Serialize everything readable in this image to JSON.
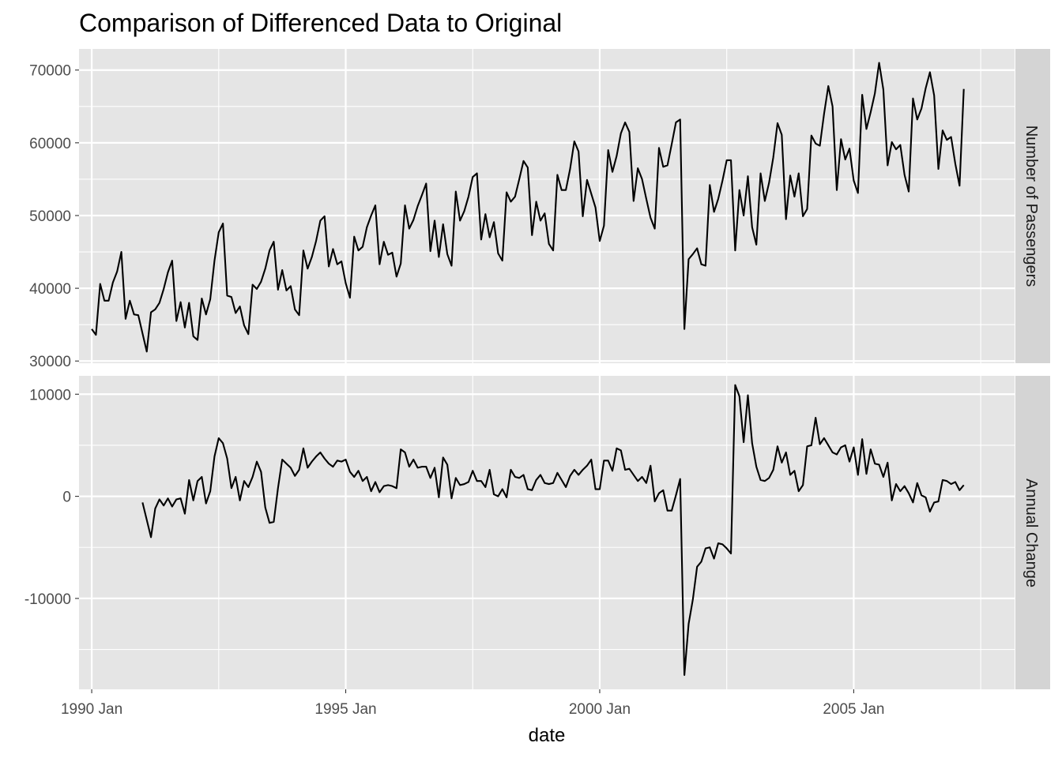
{
  "chart_data": {
    "type": "line",
    "title": "Comparison of Differenced Data to Original",
    "xlabel": "date",
    "x_ticks": [
      "1990 Jan",
      "1995 Jan",
      "2000 Jan",
      "2005 Jan"
    ],
    "x_range": [
      "1989-10",
      "2008-03"
    ],
    "panels": [
      {
        "strip_label": "Number of Passengers",
        "ylim": [
          29700,
          72900
        ],
        "y_ticks": [
          30000,
          40000,
          50000,
          60000,
          70000
        ],
        "series": [
          {
            "start": "1990-01",
            "values": [
              34400,
              33600,
              40600,
              38300,
              38300,
              40800,
              42300,
              45000,
              35800,
              38300,
              36400,
              36300,
              33800,
              31300,
              36700,
              37100,
              38000,
              39900,
              42200,
              43800,
              35500,
              38100,
              34600,
              38000,
              33400,
              32900,
              38600,
              36400,
              38500,
              43800,
              47700,
              48900,
              39000,
              38800,
              36600,
              37500,
              34900,
              33700,
              40500,
              39900,
              40900,
              42700,
              45200,
              46400,
              39800,
              42500,
              39700,
              40300,
              37100,
              36300,
              45200,
              42700,
              44300,
              46500,
              49300,
              49900,
              43000,
              45400,
              43300,
              43700,
              40700,
              38700,
              47100,
              45200,
              45700,
              48400,
              50000,
              51400,
              43300,
              46400,
              44600,
              44900,
              41600,
              43400,
              51400,
              48200,
              49400,
              51300,
              52800,
              54400,
              45100,
              49300,
              44300,
              48800,
              44700,
              43100,
              53300,
              49300,
              50600,
              52600,
              55300,
              55800,
              46700,
              50200,
              47000,
              49100,
              44800,
              43800,
              53200,
              51900,
              52600,
              55000,
              57500,
              56600,
              47300,
              51900,
              49300,
              50300,
              46100,
              45200,
              55600,
              53500,
              53500,
              56400,
              60200,
              58800,
              49900,
              54900,
              53000,
              51100,
              46500,
              48600,
              59000,
              56000,
              58200,
              61300,
              62800,
              61500,
              52000,
              56500,
              55000,
              52300,
              49700,
              48200,
              59300,
              56700,
              56900,
              59800,
              62800,
              63200,
              34400,
              44000,
              44700,
              45500,
              43300,
              43100,
              54200,
              50500,
              52300,
              54800,
              57600,
              57600,
              45200,
              53500,
              50000,
              55400,
              48400,
              46000,
              55800,
              52000,
              54500,
              58000,
              62700,
              61100,
              49500,
              55500,
              52600,
              55800,
              49900,
              50900,
              61000,
              59900,
              59600,
              64000,
              67800,
              65000,
              53500,
              60500,
              57700,
              59200,
              54800,
              53100,
              66600,
              61900,
              64200,
              66800,
              71000,
              67300,
              56900,
              60100,
              59100,
              59700,
              55600,
              53300,
              66100,
              63200,
              64700,
              67500,
              69700,
              66500,
              56400,
              61700,
              60400,
              60800,
              57100,
              54100,
              67400
            ]
          }
        ]
      },
      {
        "strip_label": "Annual Change",
        "ylim": [
          -18900,
          11800
        ],
        "y_ticks": [
          -10000,
          0,
          10000
        ],
        "series": [
          {
            "start": "1991-01",
            "values": [
              -600,
              -2300,
              -4000,
              -1200,
              -300,
              -900,
              -200,
              -1000,
              -300,
              -200,
              -1700,
              1600,
              -400,
              1500,
              1900,
              -700,
              500,
              3900,
              5700,
              5200,
              3700,
              800,
              1900,
              -400,
              1500,
              900,
              1900,
              3400,
              2400,
              -1100,
              -2600,
              -2500,
              800,
              3600,
              3200,
              2800,
              2000,
              2600,
              4700,
              2800,
              3400,
              3900,
              4300,
              3700,
              3200,
              2900,
              3500,
              3400,
              3600,
              2400,
              1900,
              2500,
              1500,
              1900,
              500,
              1400,
              400,
              1000,
              1100,
              1000,
              800,
              4600,
              4300,
              2900,
              3600,
              2800,
              2900,
              2900,
              1800,
              2800,
              -100,
              3800,
              3100,
              -200,
              1800,
              1100,
              1200,
              1400,
              2500,
              1500,
              1500,
              900,
              2600,
              200,
              0,
              700,
              -100,
              2600,
              1900,
              1800,
              2100,
              700,
              600,
              1600,
              2100,
              1300,
              1200,
              1300,
              2300,
              1600,
              900,
              2000,
              2600,
              2100,
              2600,
              3000,
              3600,
              700,
              700,
              3500,
              3500,
              2500,
              4700,
              4500,
              2600,
              2700,
              2100,
              1500,
              1900,
              1300,
              3000,
              -500,
              300,
              600,
              -1400,
              -1400,
              100,
              1700,
              -17500,
              -12500,
              -10100,
              -6900,
              -6400,
              -5100,
              -5000,
              -6100,
              -4600,
              -4700,
              -5100,
              -5600,
              10900,
              9800,
              5300,
              9900,
              5200,
              2900,
              1600,
              1500,
              1800,
              2600,
              4900,
              3300,
              4300,
              2100,
              2500,
              500,
              1100,
              4900,
              5000,
              7700,
              5100,
              5700,
              5000,
              4300,
              4100,
              4800,
              5000,
              3400,
              4800,
              2100,
              5600,
              2200,
              4600,
              3200,
              3100,
              1900,
              3300,
              -400,
              1200,
              500,
              1000,
              300,
              -600,
              1300,
              100,
              -100,
              -1500,
              -600,
              -500,
              1600,
              1500,
              1200,
              1400,
              600,
              1100
            ]
          }
        ]
      }
    ]
  },
  "colors": {
    "panel_background": "#e5e5e5",
    "strip_background": "#d4d4d4",
    "gridline": "#ffffff",
    "line": "#000000"
  }
}
